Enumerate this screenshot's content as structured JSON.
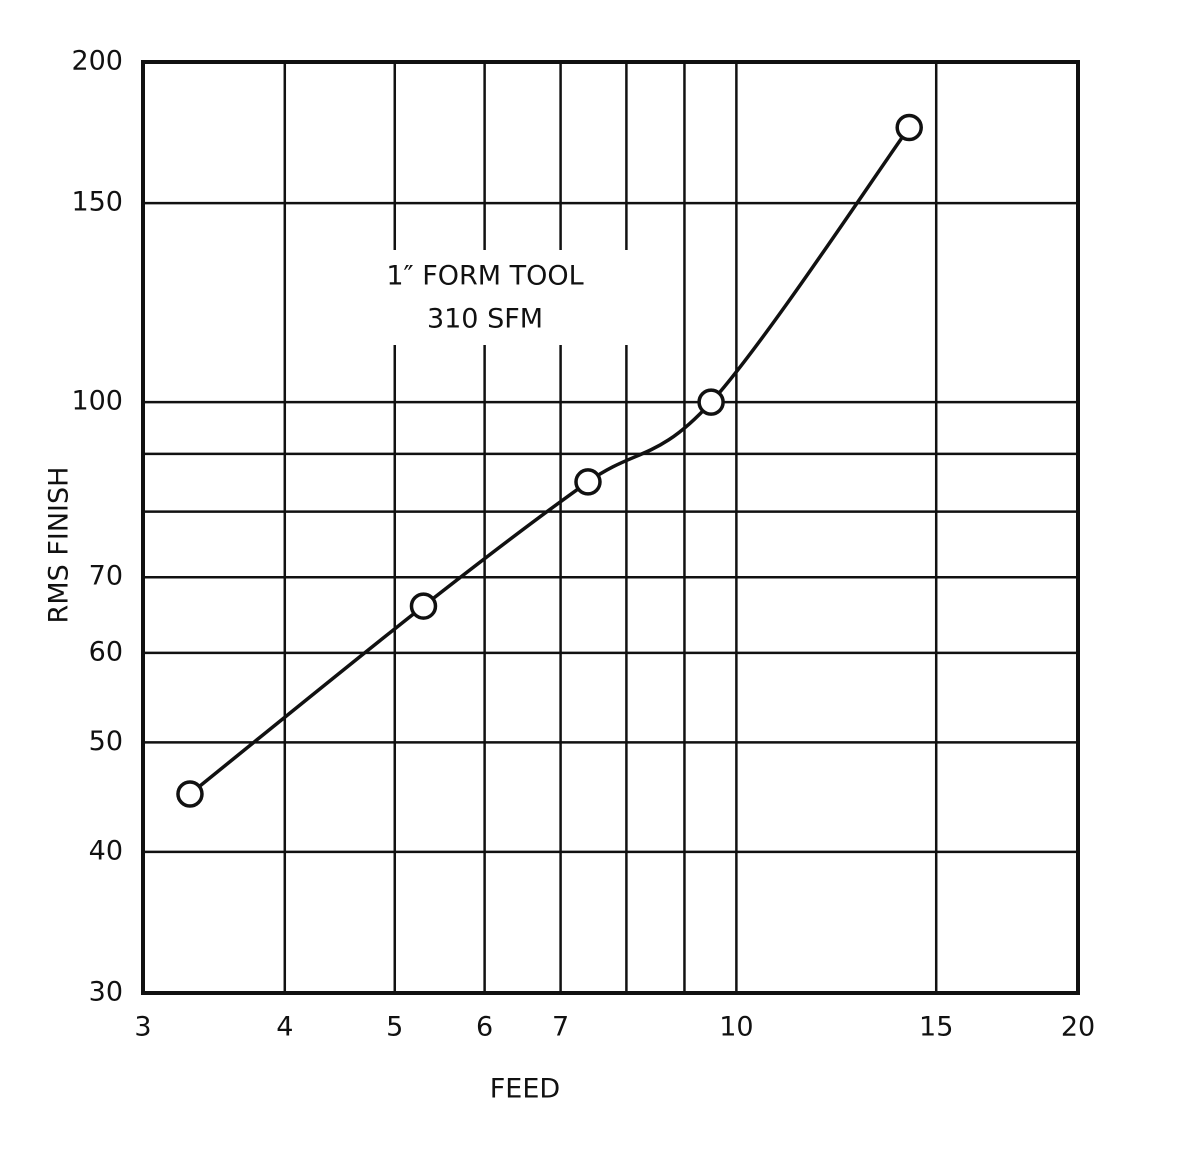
{
  "chart_data": {
    "type": "line",
    "x_label": "FEED",
    "y_label": "RMS FINISH",
    "annotation": [
      "1″ FORM TOOL",
      "310 SFM"
    ],
    "x": [
      3.3,
      5.3,
      7.4,
      9.5,
      14.2
    ],
    "series": [
      {
        "color": "#111111",
        "values": [
          45,
          66,
          85,
          100,
          175
        ]
      }
    ],
    "log_x": true,
    "log_y": true,
    "xlim": [
      3,
      20
    ],
    "ylim": [
      30,
      200
    ],
    "xticks": [
      3,
      4,
      5,
      6,
      7,
      10,
      15,
      20
    ],
    "yticks": [
      30,
      40,
      50,
      60,
      70,
      100,
      150,
      200
    ],
    "xminor": [
      8,
      9
    ],
    "yminor": [
      80,
      90
    ],
    "grid": true
  }
}
